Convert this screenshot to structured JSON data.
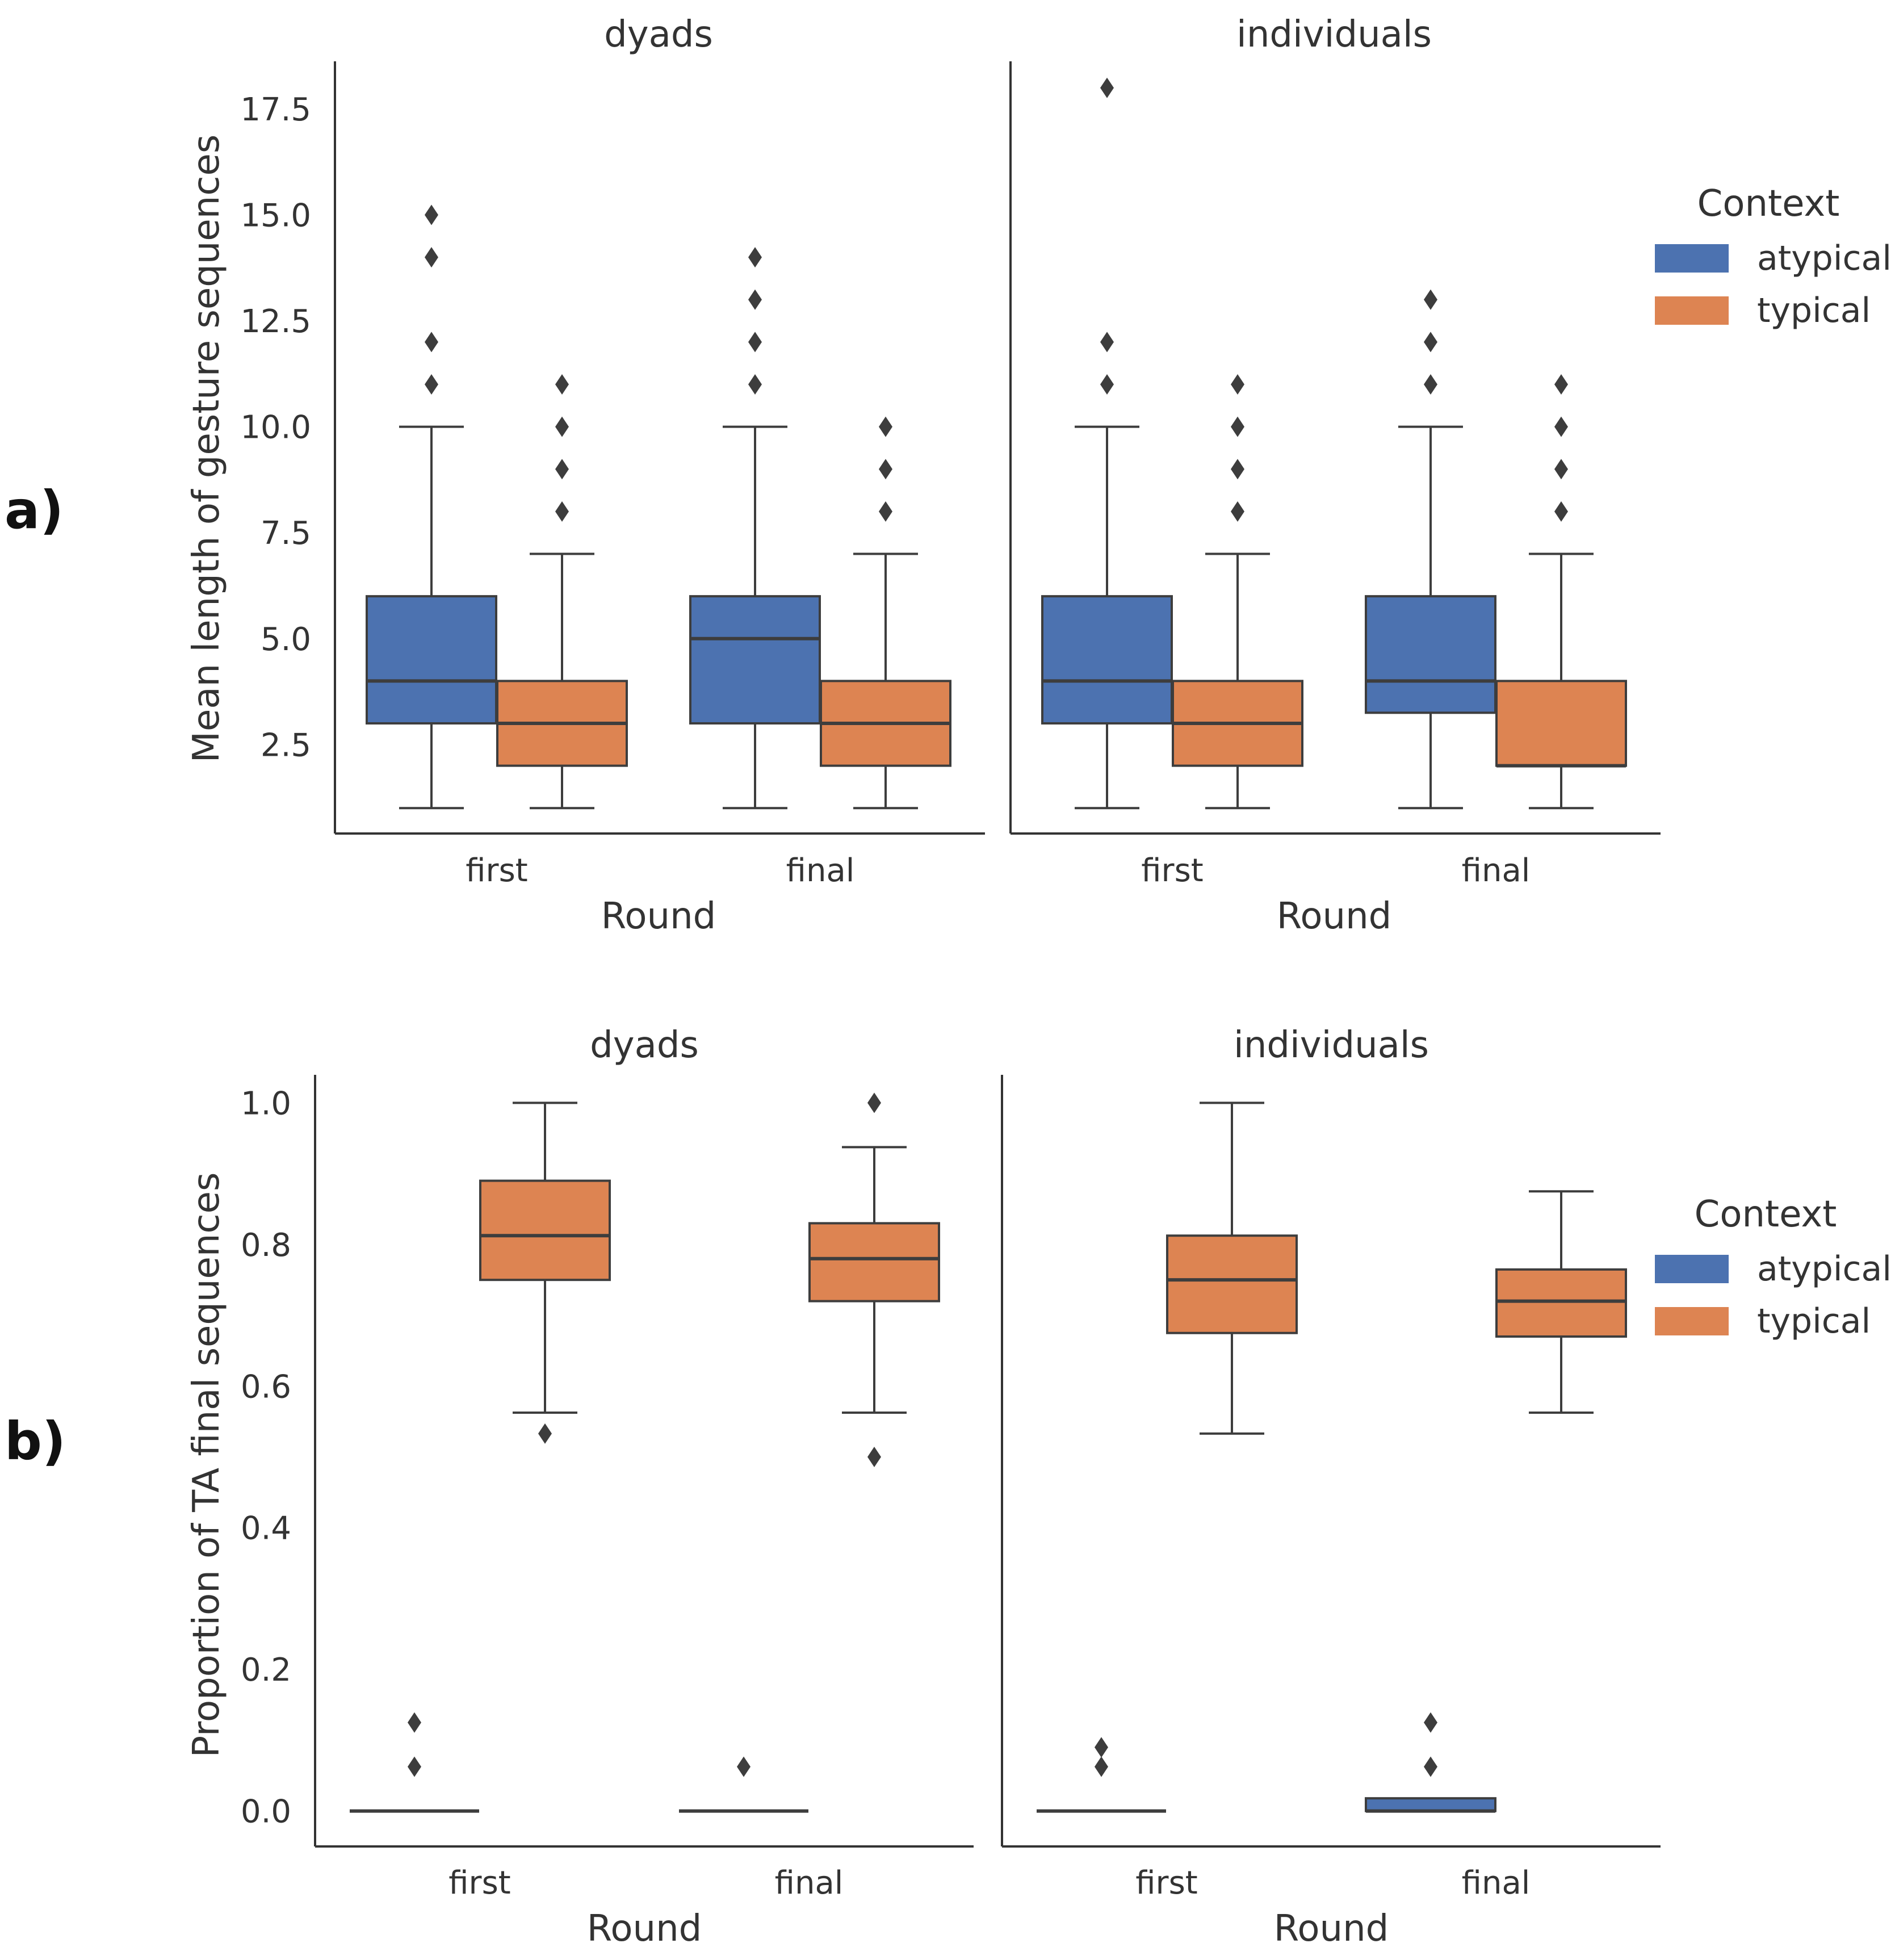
{
  "panel_labels": [
    "a)",
    "b)"
  ],
  "colors": {
    "atypical": "#4c72b0",
    "typical": "#dd8452"
  },
  "chart_data": [
    {
      "type": "box",
      "ylabel": "Mean length of gesture sequences",
      "xlabel": "Round",
      "ylim": [
        0.4,
        18.8
      ],
      "yticks": [
        2.5,
        5.0,
        7.5,
        10.0,
        12.5,
        15.0,
        17.5
      ],
      "ytick_labels": [
        "2.5",
        "5.0",
        "7.5",
        "10.0",
        "12.5",
        "15.0",
        "17.5"
      ],
      "categories": [
        "first",
        "final"
      ],
      "hue": [
        "atypical",
        "typical"
      ],
      "legend": {
        "title": "Context",
        "entries": [
          "atypical",
          "typical"
        ],
        "placement": "right"
      },
      "facets": [
        {
          "title": "dyads",
          "boxes": [
            {
              "round": "first",
              "context": "atypical",
              "whislo": 1,
              "q1": 3,
              "med": 4,
              "q3": 6,
              "whishi": 10,
              "fliers": [
                11,
                12,
                14,
                15
              ]
            },
            {
              "round": "first",
              "context": "typical",
              "whislo": 1,
              "q1": 2,
              "med": 3,
              "q3": 4,
              "whishi": 7,
              "fliers": [
                8,
                9,
                10,
                11
              ]
            },
            {
              "round": "final",
              "context": "atypical",
              "whislo": 1,
              "q1": 3,
              "med": 5,
              "q3": 6,
              "whishi": 10,
              "fliers": [
                11,
                12,
                13,
                14
              ]
            },
            {
              "round": "final",
              "context": "typical",
              "whislo": 1,
              "q1": 2,
              "med": 3,
              "q3": 4,
              "whishi": 7,
              "fliers": [
                8,
                9,
                10
              ]
            }
          ]
        },
        {
          "title": "individuals",
          "boxes": [
            {
              "round": "first",
              "context": "atypical",
              "whislo": 1,
              "q1": 3,
              "med": 4,
              "q3": 6,
              "whishi": 10,
              "fliers": [
                11,
                12,
                18
              ]
            },
            {
              "round": "first",
              "context": "typical",
              "whislo": 1,
              "q1": 2,
              "med": 3,
              "q3": 4,
              "whishi": 7,
              "fliers": [
                8,
                9,
                10,
                11
              ]
            },
            {
              "round": "final",
              "context": "atypical",
              "whislo": 1,
              "q1": 3.25,
              "med": 4,
              "q3": 6,
              "whishi": 10,
              "fliers": [
                11,
                12,
                13
              ]
            },
            {
              "round": "final",
              "context": "typical",
              "whislo": 1,
              "q1": 2,
              "med": 2,
              "q3": 4,
              "whishi": 7,
              "fliers": [
                8,
                9,
                10,
                11
              ]
            }
          ]
        }
      ]
    },
    {
      "type": "box",
      "ylabel": "Proportion of TA final sequences",
      "xlabel": "Round",
      "ylim": [
        -0.05,
        1.05
      ],
      "yticks": [
        0.0,
        0.2,
        0.4,
        0.6,
        0.8,
        1.0
      ],
      "ytick_labels": [
        "0.0",
        "0.2",
        "0.4",
        "0.6",
        "0.8",
        "1.0"
      ],
      "categories": [
        "first",
        "final"
      ],
      "hue": [
        "atypical",
        "typical"
      ],
      "legend": {
        "title": "Context",
        "entries": [
          "atypical",
          "typical"
        ],
        "placement": "right"
      },
      "facets": [
        {
          "title": "dyads",
          "boxes": [
            {
              "round": "first",
              "context": "atypical",
              "whislo": 0,
              "q1": 0,
              "med": 0,
              "q3": 0,
              "whishi": 0,
              "fliers": [
                0.0625,
                0.125
              ]
            },
            {
              "round": "first",
              "context": "typical",
              "whislo": 0.5625,
              "q1": 0.75,
              "med": 0.8125,
              "q3": 0.89,
              "whishi": 1.0,
              "fliers": [
                0.533
              ]
            },
            {
              "round": "final",
              "context": "atypical",
              "whislo": 0,
              "q1": 0,
              "med": 0,
              "q3": 0,
              "whishi": 0,
              "fliers": [
                0.0625
              ]
            },
            {
              "round": "final",
              "context": "typical",
              "whislo": 0.5625,
              "q1": 0.72,
              "med": 0.78,
              "q3": 0.83,
              "whishi": 0.9375,
              "fliers": [
                0.5,
                1.0
              ]
            }
          ]
        },
        {
          "title": "individuals",
          "boxes": [
            {
              "round": "first",
              "context": "atypical",
              "whislo": 0,
              "q1": 0,
              "med": 0,
              "q3": 0,
              "whishi": 0,
              "fliers": [
                0.0625,
                0.09
              ]
            },
            {
              "round": "first",
              "context": "typical",
              "whislo": 0.533,
              "q1": 0.675,
              "med": 0.75,
              "q3": 0.8125,
              "whishi": 1.0,
              "fliers": []
            },
            {
              "round": "final",
              "context": "atypical",
              "whislo": 0,
              "q1": 0,
              "med": 0,
              "q3": 0.018,
              "whishi": 0.018,
              "fliers": [
                0.0625,
                0.125
              ]
            },
            {
              "round": "final",
              "context": "typical",
              "whislo": 0.5625,
              "q1": 0.67,
              "med": 0.72,
              "q3": 0.7647,
              "whishi": 0.875,
              "fliers": []
            }
          ]
        }
      ]
    }
  ]
}
